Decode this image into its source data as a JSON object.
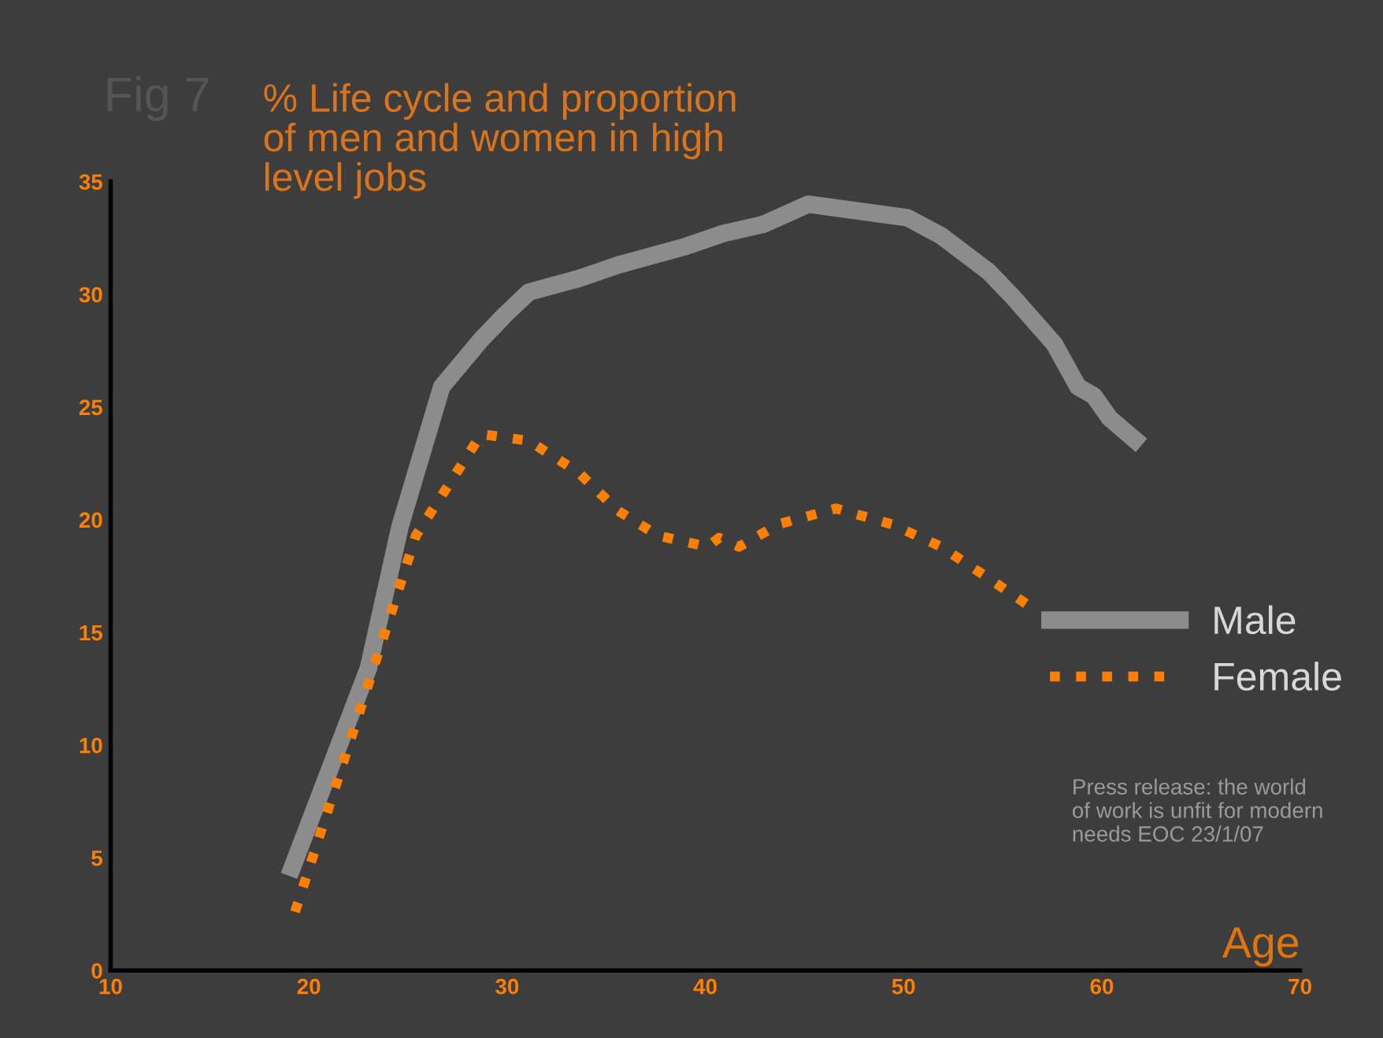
{
  "chart_data": {
    "type": "line",
    "title": "% Life cycle and proportion\nof men and women in high\nlevel jobs",
    "xlabel": "Age",
    "annotations": [
      "Fig 7",
      "Press release: the world\nof work is unfit for modern\nneeds EOC 23/1/07"
    ],
    "xlim": [
      10,
      70
    ],
    "xticks": [
      10,
      20,
      30,
      40,
      50,
      60,
      70
    ],
    "ylim": [
      0,
      35
    ],
    "yticks": [
      0,
      5,
      10,
      15,
      20,
      25,
      30,
      35
    ],
    "grid": false,
    "legend": "right",
    "marker": "none",
    "series": [
      {
        "name": "Male",
        "color": "#8c8c8c",
        "line_style": "solid",
        "x": [
          19,
          23,
          24.6,
          26.7,
          28.7,
          29.9,
          31.1,
          33.6,
          35.6,
          38.9,
          40.9,
          42.9,
          45.2,
          50.2,
          51.9,
          54.3,
          55.5,
          56.3,
          57.6,
          58.8,
          59.6,
          60.4,
          62
        ],
        "values": [
          4.2,
          13.4,
          19.7,
          25.9,
          28,
          29.1,
          30.1,
          30.7,
          31.3,
          32.1,
          32.7,
          33.1,
          34,
          33.4,
          32.6,
          31,
          29.9,
          29.1,
          27.8,
          25.9,
          25.5,
          24.5,
          23.3
        ]
      },
      {
        "name": "Female",
        "color": "#ff7f00",
        "line_style": "dotted",
        "x": [
          19.3,
          22.6,
          25.4,
          28.7,
          31.1,
          33.6,
          35.6,
          37.6,
          40.1,
          40.7,
          41.7,
          43.7,
          46.6,
          49.4,
          51.9,
          54.3,
          56.3
        ],
        "values": [
          2.6,
          11.6,
          19.3,
          23.8,
          23.5,
          22.1,
          20.4,
          19.3,
          18.8,
          19.2,
          18.8,
          19.8,
          20.5,
          19.8,
          18.8,
          17.4,
          16.2
        ]
      }
    ]
  }
}
